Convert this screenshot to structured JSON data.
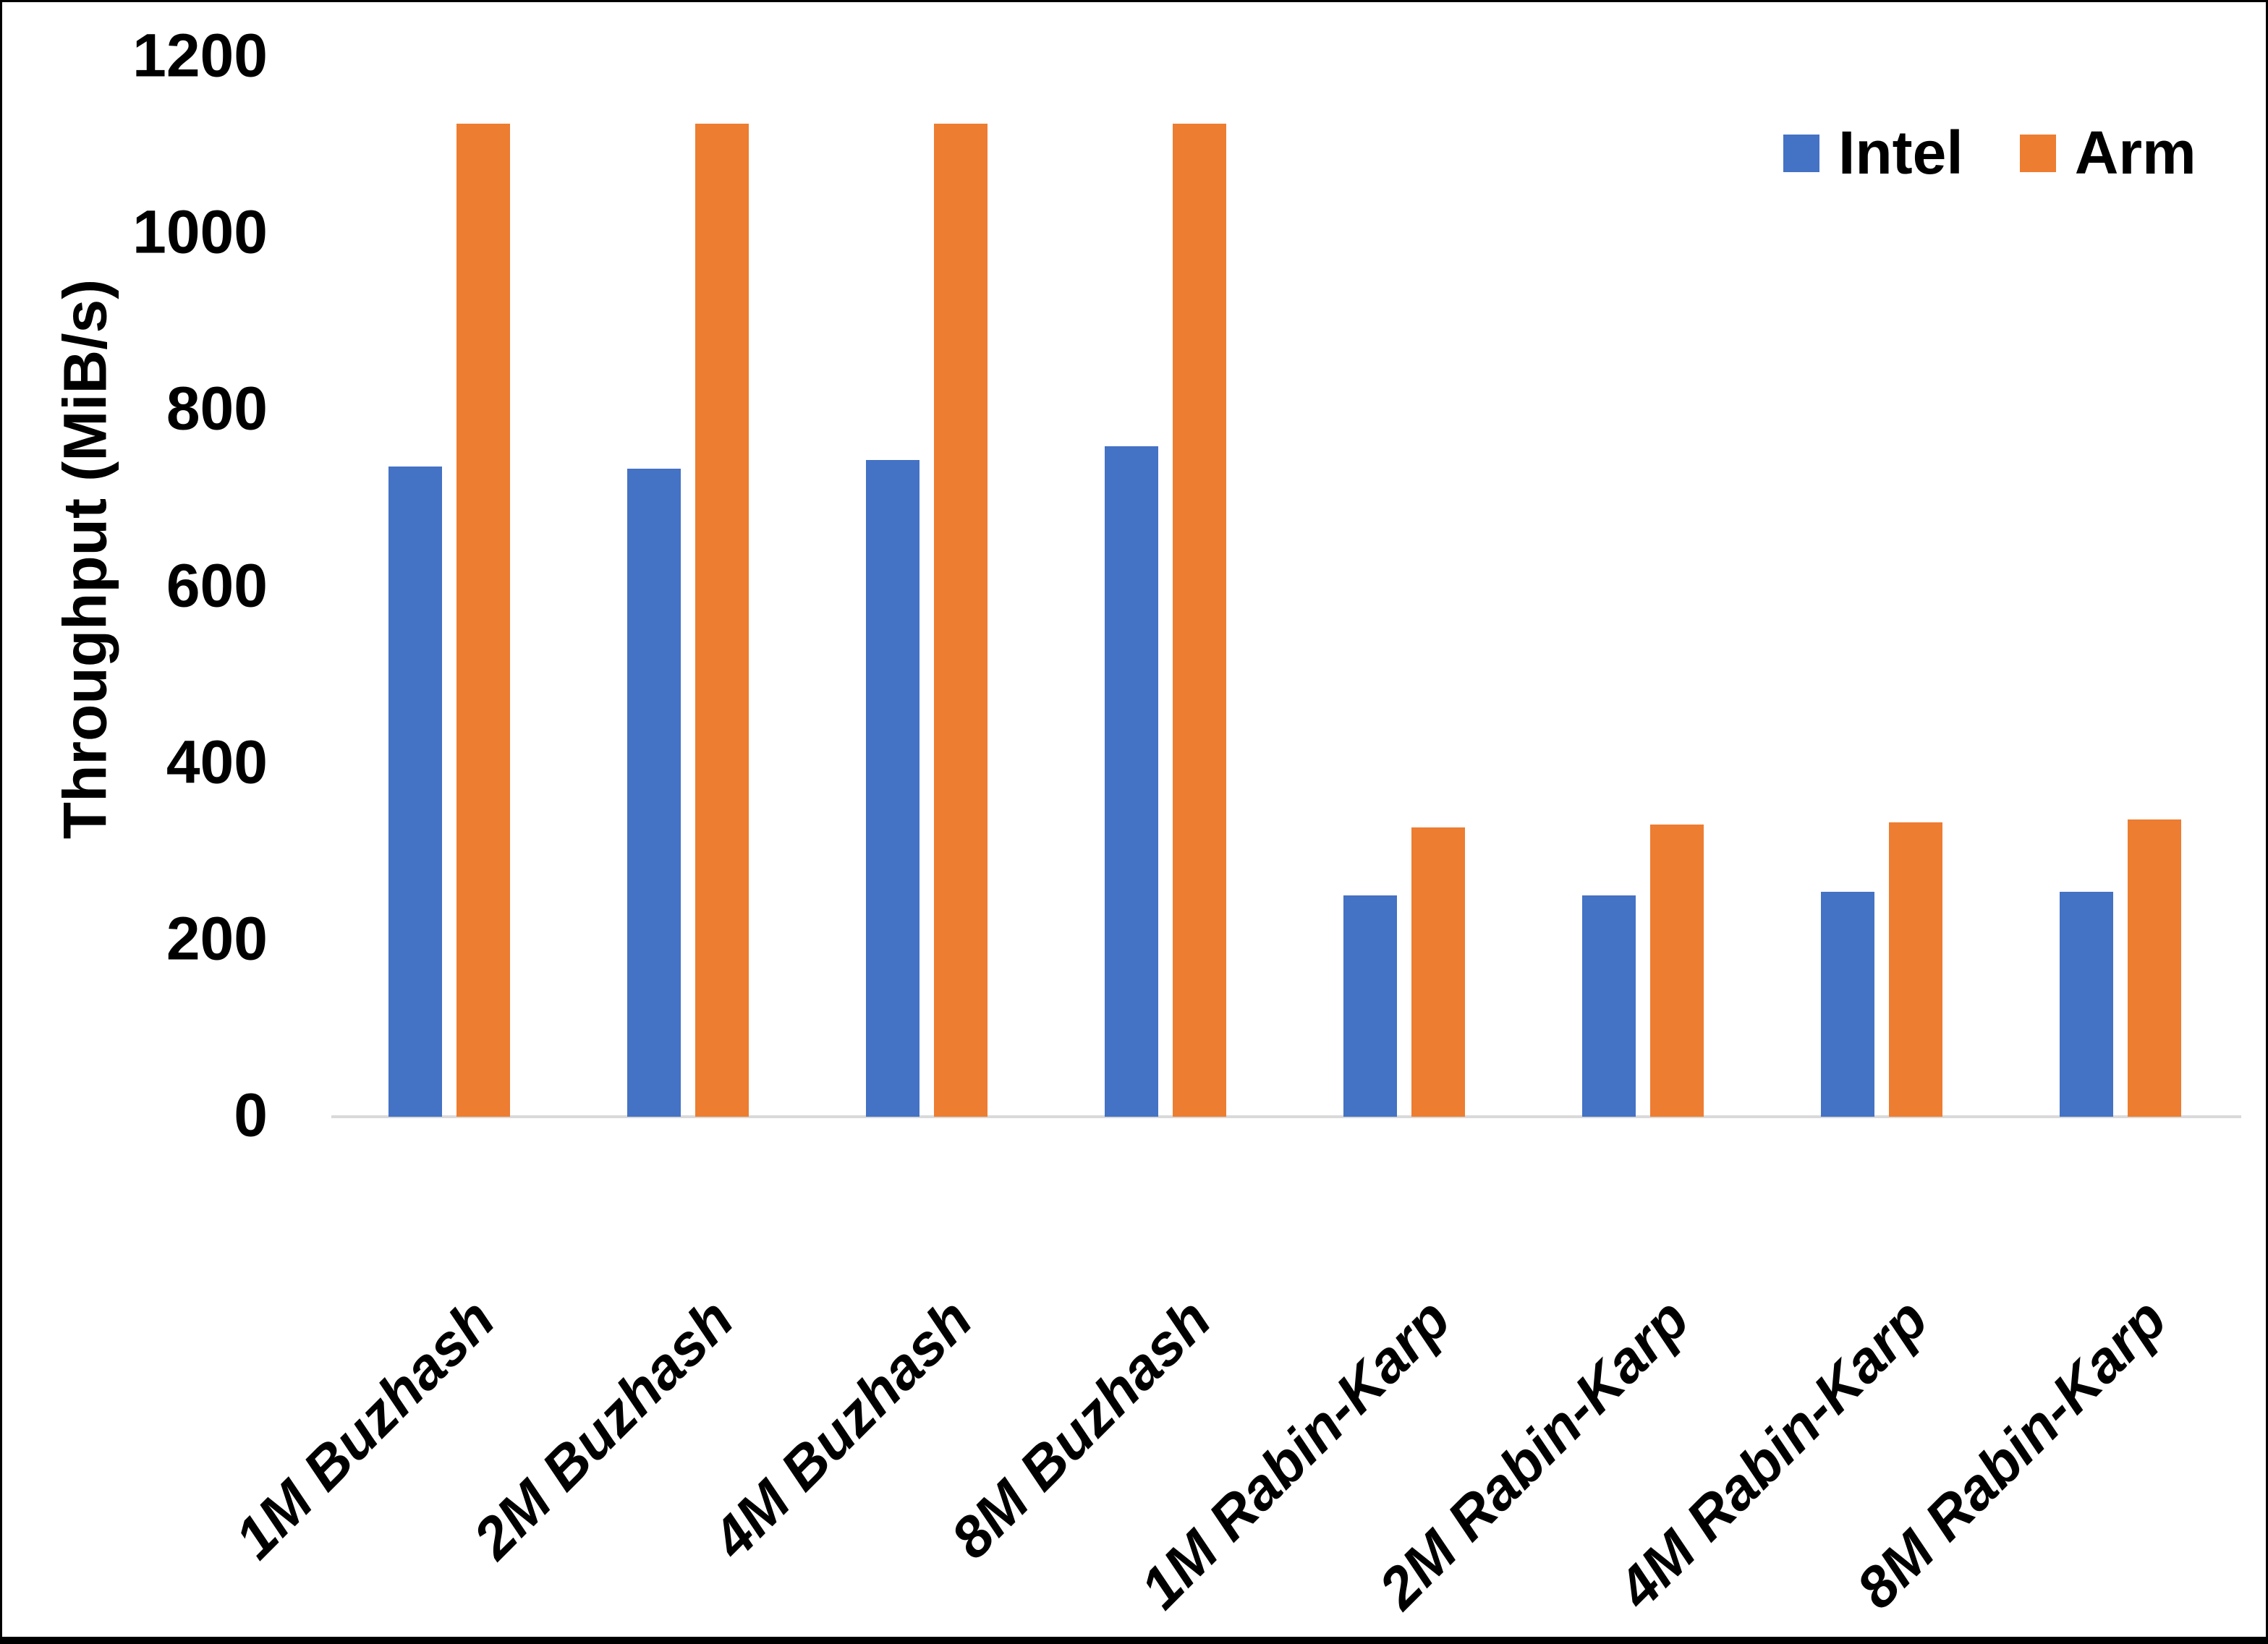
{
  "chart_data": {
    "type": "bar",
    "title": "",
    "xlabel": "",
    "ylabel": "Throughput (MiB/s)",
    "ylim": [
      0,
      1200
    ],
    "yticks": [
      0,
      200,
      400,
      600,
      800,
      1000,
      1200
    ],
    "grid": false,
    "background": "#FFFFFF",
    "text_color": "#000000",
    "axis_line_color": "#D9D9D9",
    "legend_position": "top-right",
    "categories": [
      "1M Buzhash",
      "2M Buzhash",
      "4M Buzhash",
      "8M Buzhash",
      "1M Rabin-Karp",
      "2M Rabin-Karp",
      "4M Rabin-Karp",
      "8M Rabin-Karp"
    ],
    "series": [
      {
        "name": "Intel",
        "color": "#4472C4",
        "values": [
          736,
          734,
          744,
          759,
          251,
          251,
          255,
          255
        ]
      },
      {
        "name": "Arm",
        "color": "#ED7D31",
        "values": [
          1125,
          1125,
          1125,
          1125,
          328,
          331,
          333,
          337
        ]
      }
    ]
  }
}
